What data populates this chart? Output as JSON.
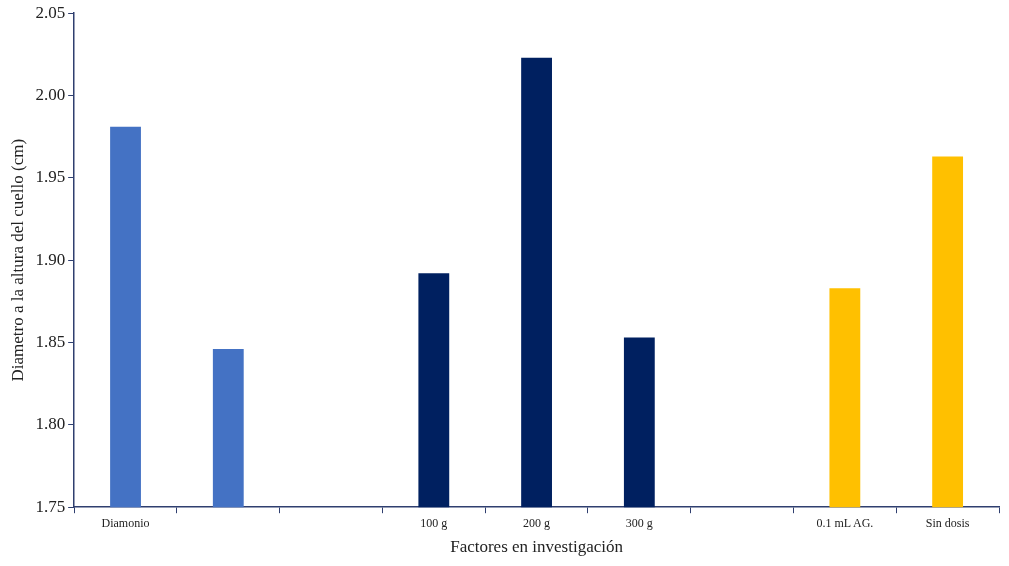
{
  "chart_data": {
    "type": "bar",
    "xlabel": "Factores en investigación",
    "ylabel": "Diametro a la altura del cuello (cm)",
    "categories": [
      "Diamonio",
      null,
      null,
      "100 g",
      "200 g",
      "300 g",
      null,
      "0.1 mL AG.",
      "Sin dosis"
    ],
    "values": [
      1.981,
      1.846,
      null,
      1.892,
      2.023,
      1.853,
      null,
      1.883,
      1.963
    ],
    "colors": [
      "#4472c4",
      "#4472c4",
      "#4472c4",
      "#002060",
      "#002060",
      "#002060",
      "#ffc000",
      "#ffc000",
      "#ffc000"
    ],
    "ylim": [
      1.75,
      2.05
    ],
    "yticks": [
      1.75,
      {
        "value": 1.8,
        "label": "1.80"
      },
      1.85,
      {
        "value": 1.9,
        "label": "1.90"
      },
      1.95,
      {
        "value": 2.0,
        "label": "2.00"
      },
      2.05
    ],
    "grid": false,
    "legend": false
  }
}
